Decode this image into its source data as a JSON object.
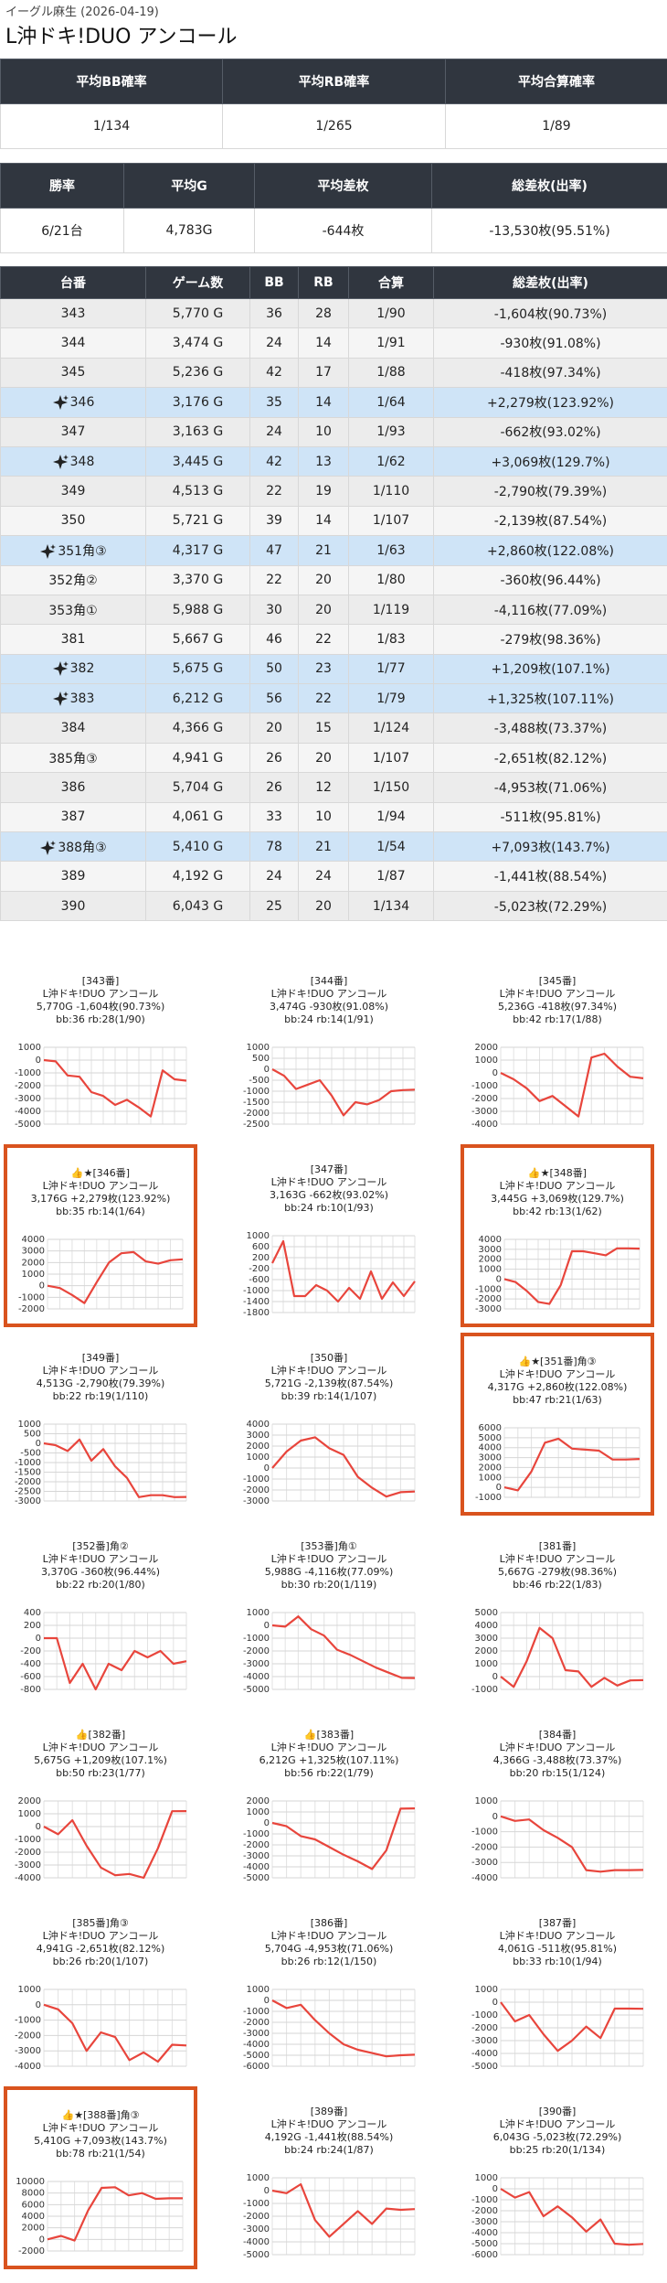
{
  "header": {
    "subtitle": "イーグル麻生 (2026-04-19)",
    "title": "L沖ドキ!DUO アンコール"
  },
  "summary1": {
    "headers": [
      "平均BB確率",
      "平均RB確率",
      "平均合算確率"
    ],
    "row": [
      "1/134",
      "1/265",
      "1/89"
    ]
  },
  "summary2": {
    "headers": [
      "勝率",
      "平均G",
      "平均差枚",
      "総差枚(出率)"
    ],
    "row": [
      "6/21台",
      "4,783G",
      "-644枚",
      "-13,530枚(95.51%)"
    ]
  },
  "table": {
    "headers": [
      "台番",
      "ゲーム数",
      "BB",
      "RB",
      "合算",
      "総差枚(出率)"
    ],
    "rows": [
      {
        "cells": [
          "343",
          "5,770 G",
          "36",
          "28",
          "1/90",
          "-1,604枚(90.73%)"
        ],
        "highlight": false
      },
      {
        "cells": [
          "344",
          "3,474 G",
          "24",
          "14",
          "1/91",
          "-930枚(91.08%)"
        ],
        "highlight": false
      },
      {
        "cells": [
          "345",
          "5,236 G",
          "42",
          "17",
          "1/88",
          "-418枚(97.34%)"
        ],
        "highlight": false
      },
      {
        "cells": [
          "346",
          "3,176 G",
          "35",
          "14",
          "1/64",
          "+2,279枚(123.92%)"
        ],
        "highlight": true
      },
      {
        "cells": [
          "347",
          "3,163 G",
          "24",
          "10",
          "1/93",
          "-662枚(93.02%)"
        ],
        "highlight": false
      },
      {
        "cells": [
          "348",
          "3,445 G",
          "42",
          "13",
          "1/62",
          "+3,069枚(129.7%)"
        ],
        "highlight": true
      },
      {
        "cells": [
          "349",
          "4,513 G",
          "22",
          "19",
          "1/110",
          "-2,790枚(79.39%)"
        ],
        "highlight": false
      },
      {
        "cells": [
          "350",
          "5,721 G",
          "39",
          "14",
          "1/107",
          "-2,139枚(87.54%)"
        ],
        "highlight": false
      },
      {
        "cells": [
          "351角③",
          "4,317 G",
          "47",
          "21",
          "1/63",
          "+2,860枚(122.08%)"
        ],
        "highlight": true
      },
      {
        "cells": [
          "352角②",
          "3,370 G",
          "22",
          "20",
          "1/80",
          "-360枚(96.44%)"
        ],
        "highlight": false
      },
      {
        "cells": [
          "353角①",
          "5,988 G",
          "30",
          "20",
          "1/119",
          "-4,116枚(77.09%)"
        ],
        "highlight": false
      },
      {
        "cells": [
          "381",
          "5,667 G",
          "46",
          "22",
          "1/83",
          "-279枚(98.36%)"
        ],
        "highlight": false
      },
      {
        "cells": [
          "382",
          "5,675 G",
          "50",
          "23",
          "1/77",
          "+1,209枚(107.1%)"
        ],
        "highlight": true
      },
      {
        "cells": [
          "383",
          "6,212 G",
          "56",
          "22",
          "1/79",
          "+1,325枚(107.11%)"
        ],
        "highlight": true
      },
      {
        "cells": [
          "384",
          "4,366 G",
          "20",
          "15",
          "1/124",
          "-3,488枚(73.37%)"
        ],
        "highlight": false
      },
      {
        "cells": [
          "385角③",
          "4,941 G",
          "26",
          "20",
          "1/107",
          "-2,651枚(82.12%)"
        ],
        "highlight": false
      },
      {
        "cells": [
          "386",
          "5,704 G",
          "26",
          "12",
          "1/150",
          "-4,953枚(71.06%)"
        ],
        "highlight": false
      },
      {
        "cells": [
          "387",
          "4,061 G",
          "33",
          "10",
          "1/94",
          "-511枚(95.81%)"
        ],
        "highlight": false
      },
      {
        "cells": [
          "388角③",
          "5,410 G",
          "78",
          "21",
          "1/54",
          "+7,093枚(143.7%)"
        ],
        "highlight": true
      },
      {
        "cells": [
          "389",
          "4,192 G",
          "24",
          "24",
          "1/87",
          "-1,441枚(88.54%)"
        ],
        "highlight": false
      },
      {
        "cells": [
          "390",
          "6,043 G",
          "25",
          "20",
          "1/134",
          "-5,023枚(72.29%)"
        ],
        "highlight": false
      }
    ]
  },
  "cards": [
    {
      "title": "[343番]",
      "name": "L沖ドキ!DUO アンコール",
      "stats": "5,770G -1,604枚(90.73%)",
      "counts": "bb:36 rb:28(1/90)",
      "outlined": false,
      "chart": {
        "type": "line",
        "color": "#e8453c",
        "ylim": [
          -5000,
          1000
        ],
        "yticks": [
          1000,
          0,
          -1000,
          -2000,
          -3000,
          -4000,
          -5000
        ],
        "values": [
          0,
          -100,
          -1200,
          -1300,
          -2500,
          -2800,
          -3500,
          -3100,
          -3700,
          -4400,
          -800,
          -1500,
          -1604
        ]
      }
    },
    {
      "title": "[344番]",
      "name": "L沖ドキ!DUO アンコール",
      "stats": "3,474G -930枚(91.08%)",
      "counts": "bb:24 rb:14(1/91)",
      "outlined": false,
      "chart": {
        "type": "line",
        "color": "#e8453c",
        "ylim": [
          -2500,
          1000
        ],
        "yticks": [
          1000,
          500,
          0,
          -500,
          -1000,
          -1500,
          -2000,
          -2500
        ],
        "values": [
          0,
          -300,
          -900,
          -700,
          -500,
          -1200,
          -2100,
          -1500,
          -1600,
          -1400,
          -1000,
          -950,
          -930
        ]
      }
    },
    {
      "title": "[345番]",
      "name": "L沖ドキ!DUO アンコール",
      "stats": "5,236G -418枚(97.34%)",
      "counts": "bb:42 rb:17(1/88)",
      "outlined": false,
      "chart": {
        "type": "line",
        "color": "#e8453c",
        "ylim": [
          -4000,
          2000
        ],
        "yticks": [
          2000,
          1000,
          0,
          -1000,
          -2000,
          -3000,
          -4000
        ],
        "values": [
          0,
          -500,
          -1200,
          -2200,
          -1800,
          -2600,
          -3400,
          1200,
          1500,
          500,
          -300,
          -418
        ]
      }
    },
    {
      "title": "👍★[346番]",
      "name": "L沖ドキ!DUO アンコール",
      "stats": "3,176G +2,279枚(123.92%)",
      "counts": "bb:35 rb:14(1/64)",
      "outlined": true,
      "chart": {
        "type": "line",
        "color": "#e8453c",
        "ylim": [
          -2000,
          4000
        ],
        "yticks": [
          4000,
          3000,
          2000,
          1000,
          0,
          -1000,
          -2000
        ],
        "values": [
          0,
          -200,
          -800,
          -1500,
          300,
          2000,
          2800,
          2900,
          2100,
          1900,
          2200,
          2279
        ]
      }
    },
    {
      "title": "[347番]",
      "name": "L沖ドキ!DUO アンコール",
      "stats": "3,163G -662枚(93.02%)",
      "counts": "bb:24 rb:10(1/93)",
      "outlined": false,
      "chart": {
        "type": "line",
        "color": "#e8453c",
        "ylim": [
          -1800,
          1000
        ],
        "yticks": [
          1000,
          600,
          200,
          -200,
          -600,
          -1000,
          -1400,
          -1800
        ],
        "values": [
          0,
          800,
          -1200,
          -1200,
          -800,
          -1000,
          -1400,
          -900,
          -1300,
          -300,
          -1300,
          -700,
          -1200,
          -662
        ]
      }
    },
    {
      "title": "👍★[348番]",
      "name": "L沖ドキ!DUO アンコール",
      "stats": "3,445G +3,069枚(129.7%)",
      "counts": "bb:42 rb:13(1/62)",
      "outlined": true,
      "chart": {
        "type": "line",
        "color": "#e8453c",
        "ylim": [
          -3000,
          4000
        ],
        "yticks": [
          4000,
          3000,
          2000,
          1000,
          0,
          -1000,
          -2000,
          -3000
        ],
        "values": [
          0,
          -300,
          -1200,
          -2300,
          -2500,
          -600,
          2800,
          2800,
          2600,
          2400,
          3100,
          3100,
          3069
        ]
      }
    },
    {
      "title": "[349番]",
      "name": "L沖ドキ!DUO アンコール",
      "stats": "4,513G -2,790枚(79.39%)",
      "counts": "bb:22 rb:19(1/110)",
      "outlined": false,
      "chart": {
        "type": "line",
        "color": "#e8453c",
        "ylim": [
          -3000,
          1000
        ],
        "yticks": [
          1000,
          500,
          0,
          -500,
          -1000,
          -1500,
          -2000,
          -2500,
          -3000
        ],
        "values": [
          0,
          -100,
          -400,
          200,
          -900,
          -300,
          -1200,
          -1800,
          -2800,
          -2700,
          -2700,
          -2800,
          -2790
        ]
      }
    },
    {
      "title": "[350番]",
      "name": "L沖ドキ!DUO アンコール",
      "stats": "5,721G -2,139枚(87.54%)",
      "counts": "bb:39 rb:14(1/107)",
      "outlined": false,
      "chart": {
        "type": "line",
        "color": "#e8453c",
        "ylim": [
          -3000,
          4000
        ],
        "yticks": [
          4000,
          3000,
          2000,
          1000,
          0,
          -1000,
          -2000,
          -3000
        ],
        "values": [
          0,
          1500,
          2500,
          2800,
          1800,
          1200,
          -800,
          -1800,
          -2600,
          -2200,
          -2139
        ]
      }
    },
    {
      "title": "👍★[351番]角③",
      "name": "L沖ドキ!DUO アンコール",
      "stats": "4,317G +2,860枚(122.08%)",
      "counts": "bb:47 rb:21(1/63)",
      "outlined": true,
      "chart": {
        "type": "line",
        "color": "#e8453c",
        "ylim": [
          -1000,
          6000
        ],
        "yticks": [
          6000,
          5000,
          4000,
          3000,
          2000,
          1000,
          0,
          -1000
        ],
        "values": [
          0,
          -300,
          1600,
          4500,
          4900,
          3900,
          3800,
          3700,
          2800,
          2800,
          2860
        ]
      }
    },
    {
      "title": "[352番]角②",
      "name": "L沖ドキ!DUO アンコール",
      "stats": "3,370G -360枚(96.44%)",
      "counts": "bb:22 rb:20(1/80)",
      "outlined": false,
      "chart": {
        "type": "line",
        "color": "#e8453c",
        "ylim": [
          -800,
          400
        ],
        "yticks": [
          400,
          200,
          0,
          -200,
          -400,
          -600,
          -800
        ],
        "values": [
          0,
          0,
          -700,
          -400,
          -800,
          -400,
          -500,
          -200,
          -300,
          -200,
          -400,
          -360
        ]
      }
    },
    {
      "title": "[353番]角①",
      "name": "L沖ドキ!DUO アンコール",
      "stats": "5,988G -4,116枚(77.09%)",
      "counts": "bb:30 rb:20(1/119)",
      "outlined": false,
      "chart": {
        "type": "line",
        "color": "#e8453c",
        "ylim": [
          -5000,
          1000
        ],
        "yticks": [
          1000,
          0,
          -1000,
          -2000,
          -3000,
          -4000,
          -5000
        ],
        "values": [
          0,
          -100,
          700,
          -300,
          -800,
          -1900,
          -2300,
          -2800,
          -3300,
          -3700,
          -4100,
          -4116
        ]
      }
    },
    {
      "title": "[381番]",
      "name": "L沖ドキ!DUO アンコール",
      "stats": "5,667G -279枚(98.36%)",
      "counts": "bb:46 rb:22(1/83)",
      "outlined": false,
      "chart": {
        "type": "line",
        "color": "#e8453c",
        "ylim": [
          -1000,
          5000
        ],
        "yticks": [
          5000,
          4000,
          3000,
          2000,
          1000,
          0,
          -1000
        ],
        "values": [
          0,
          -800,
          1200,
          3800,
          3000,
          500,
          400,
          -800,
          -100,
          -700,
          -300,
          -279
        ]
      }
    },
    {
      "title": "👍[382番]",
      "name": "L沖ドキ!DUO アンコール",
      "stats": "5,675G +1,209枚(107.1%)",
      "counts": "bb:50 rb:23(1/77)",
      "outlined": false,
      "chart": {
        "type": "line",
        "color": "#e8453c",
        "ylim": [
          -4000,
          2000
        ],
        "yticks": [
          2000,
          1000,
          0,
          -1000,
          -2000,
          -3000,
          -4000
        ],
        "values": [
          0,
          -600,
          500,
          -1500,
          -3200,
          -3800,
          -3700,
          -4000,
          -1700,
          1200,
          1209
        ]
      }
    },
    {
      "title": "👍[383番]",
      "name": "L沖ドキ!DUO アンコール",
      "stats": "6,212G +1,325枚(107.11%)",
      "counts": "bb:56 rb:22(1/79)",
      "outlined": false,
      "chart": {
        "type": "line",
        "color": "#e8453c",
        "ylim": [
          -5000,
          2000
        ],
        "yticks": [
          2000,
          1000,
          0,
          -1000,
          -2000,
          -3000,
          -4000,
          -5000
        ],
        "values": [
          0,
          -300,
          -1200,
          -1500,
          -2200,
          -2900,
          -3500,
          -4200,
          -2500,
          1300,
          1325
        ]
      }
    },
    {
      "title": "[384番]",
      "name": "L沖ドキ!DUO アンコール",
      "stats": "4,366G -3,488枚(73.37%)",
      "counts": "bb:20 rb:15(1/124)",
      "outlined": false,
      "chart": {
        "type": "line",
        "color": "#e8453c",
        "ylim": [
          -4000,
          1000
        ],
        "yticks": [
          1000,
          0,
          -1000,
          -2000,
          -3000,
          -4000
        ],
        "values": [
          0,
          -300,
          -200,
          -900,
          -1400,
          -2000,
          -3500,
          -3600,
          -3500,
          -3500,
          -3488
        ]
      }
    },
    {
      "title": "[385番]角③",
      "name": "L沖ドキ!DUO アンコール",
      "stats": "4,941G -2,651枚(82.12%)",
      "counts": "bb:26 rb:20(1/107)",
      "outlined": false,
      "chart": {
        "type": "line",
        "color": "#e8453c",
        "ylim": [
          -4000,
          1000
        ],
        "yticks": [
          1000,
          0,
          -1000,
          -2000,
          -3000,
          -4000
        ],
        "values": [
          0,
          -300,
          -1200,
          -3000,
          -1800,
          -2100,
          -3600,
          -3100,
          -3700,
          -2600,
          -2651
        ]
      }
    },
    {
      "title": "[386番]",
      "name": "L沖ドキ!DUO アンコール",
      "stats": "5,704G -4,953枚(71.06%)",
      "counts": "bb:26 rb:12(1/150)",
      "outlined": false,
      "chart": {
        "type": "line",
        "color": "#e8453c",
        "ylim": [
          -6000,
          1000
        ],
        "yticks": [
          1000,
          0,
          -1000,
          -2000,
          -3000,
          -4000,
          -5000,
          -6000
        ],
        "values": [
          0,
          -700,
          -400,
          -1800,
          -3000,
          -4000,
          -4500,
          -4800,
          -5100,
          -5000,
          -4953
        ]
      }
    },
    {
      "title": "[387番]",
      "name": "L沖ドキ!DUO アンコール",
      "stats": "4,061G -511枚(95.81%)",
      "counts": "bb:33 rb:10(1/94)",
      "outlined": false,
      "chart": {
        "type": "line",
        "color": "#e8453c",
        "ylim": [
          -5000,
          1000
        ],
        "yticks": [
          1000,
          0,
          -1000,
          -2000,
          -3000,
          -4000,
          -5000
        ],
        "values": [
          0,
          -1500,
          -1000,
          -2500,
          -3800,
          -3000,
          -1900,
          -2800,
          -500,
          -500,
          -511
        ]
      }
    },
    {
      "title": "👍★[388番]角③",
      "name": "L沖ドキ!DUO アンコール",
      "stats": "5,410G +7,093枚(143.7%)",
      "counts": "bb:78 rb:21(1/54)",
      "outlined": true,
      "chart": {
        "type": "line",
        "color": "#e8453c",
        "ylim": [
          -2000,
          10000
        ],
        "yticks": [
          10000,
          8000,
          6000,
          4000,
          2000,
          0,
          -2000
        ],
        "values": [
          0,
          600,
          -200,
          5000,
          8900,
          9000,
          7600,
          8000,
          7000,
          7100,
          7093
        ]
      }
    },
    {
      "title": "[389番]",
      "name": "L沖ドキ!DUO アンコール",
      "stats": "4,192G -1,441枚(88.54%)",
      "counts": "bb:24 rb:24(1/87)",
      "outlined": false,
      "chart": {
        "type": "line",
        "color": "#e8453c",
        "ylim": [
          -5000,
          1000
        ],
        "yticks": [
          1000,
          0,
          -1000,
          -2000,
          -3000,
          -4000,
          -5000
        ],
        "values": [
          0,
          -200,
          500,
          -2300,
          -3600,
          -2600,
          -1600,
          -2600,
          -1400,
          -1500,
          -1441
        ]
      }
    },
    {
      "title": "[390番]",
      "name": "L沖ドキ!DUO アンコール",
      "stats": "6,043G -5,023枚(72.29%)",
      "counts": "bb:25 rb:20(1/134)",
      "outlined": false,
      "chart": {
        "type": "line",
        "color": "#e8453c",
        "ylim": [
          -6000,
          1000
        ],
        "yticks": [
          1000,
          0,
          -1000,
          -2000,
          -3000,
          -4000,
          -5000,
          -6000
        ],
        "values": [
          0,
          -800,
          -300,
          -2500,
          -1600,
          -2600,
          -3900,
          -2800,
          -5000,
          -5100,
          -5023
        ]
      }
    }
  ]
}
